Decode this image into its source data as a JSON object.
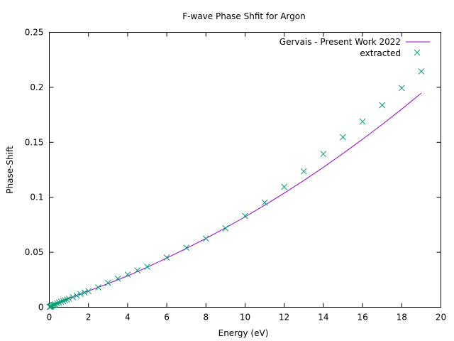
{
  "chart_data": {
    "type": "scatter",
    "title": "F-wave Phase Shfit for Argon",
    "xlabel": "Energy (eV)",
    "ylabel": "Phase-Shift",
    "xlim": [
      0,
      20
    ],
    "ylim": [
      0,
      0.25
    ],
    "x_ticks": [
      "0",
      "2",
      "4",
      "6",
      "8",
      "10",
      "12",
      "14",
      "16",
      "18",
      "20"
    ],
    "y_ticks": [
      "0",
      "0.05",
      "0.1",
      "0.15",
      "0.2",
      "0.25"
    ],
    "grid": false,
    "legend_position": "top-right",
    "series": [
      {
        "name": "Gervais - Present Work 2022",
        "kind": "line",
        "color": "#9400d3",
        "x": [
          0,
          0.25,
          0.5,
          1,
          1.5,
          2,
          3,
          4,
          5,
          6,
          7,
          8,
          9,
          10,
          11,
          12,
          13,
          14,
          15,
          16,
          17,
          18,
          19
        ],
        "y": [
          0,
          0.0025,
          0.0045,
          0.008,
          0.0115,
          0.0148,
          0.0215,
          0.0285,
          0.0364,
          0.0448,
          0.0535,
          0.0626,
          0.0722,
          0.0822,
          0.0928,
          0.1038,
          0.1153,
          0.1273,
          0.1398,
          0.1528,
          0.1662,
          0.1802,
          0.1947
        ]
      },
      {
        "name": "extracted",
        "kind": "points",
        "marker": "x",
        "color": "#009e73",
        "x": [
          0.02,
          0.05,
          0.08,
          0.1,
          0.15,
          0.2,
          0.25,
          0.3,
          0.4,
          0.5,
          0.6,
          0.7,
          0.8,
          0.9,
          1.0,
          1.2,
          1.4,
          1.6,
          1.8,
          2.0,
          2.5,
          3.0,
          3.5,
          4.0,
          4.5,
          5.0,
          6.0,
          7.0,
          8.0,
          9.0,
          10.0,
          11.0,
          12.0,
          13.0,
          14.0,
          15.0,
          16.0,
          17.0,
          18.0,
          19.0
        ],
        "y": [
          0.0002,
          0.0005,
          0.0008,
          0.001,
          0.0015,
          0.002,
          0.0023,
          0.0027,
          0.0035,
          0.0042,
          0.005,
          0.0057,
          0.0064,
          0.007,
          0.0078,
          0.0092,
          0.0106,
          0.012,
          0.0134,
          0.0147,
          0.0181,
          0.0221,
          0.026,
          0.0297,
          0.0335,
          0.0368,
          0.0452,
          0.0541,
          0.0625,
          0.0718,
          0.083,
          0.0952,
          0.1095,
          0.1236,
          0.1394,
          0.1547,
          0.1688,
          0.1838,
          0.1994,
          0.2145
        ]
      }
    ]
  }
}
